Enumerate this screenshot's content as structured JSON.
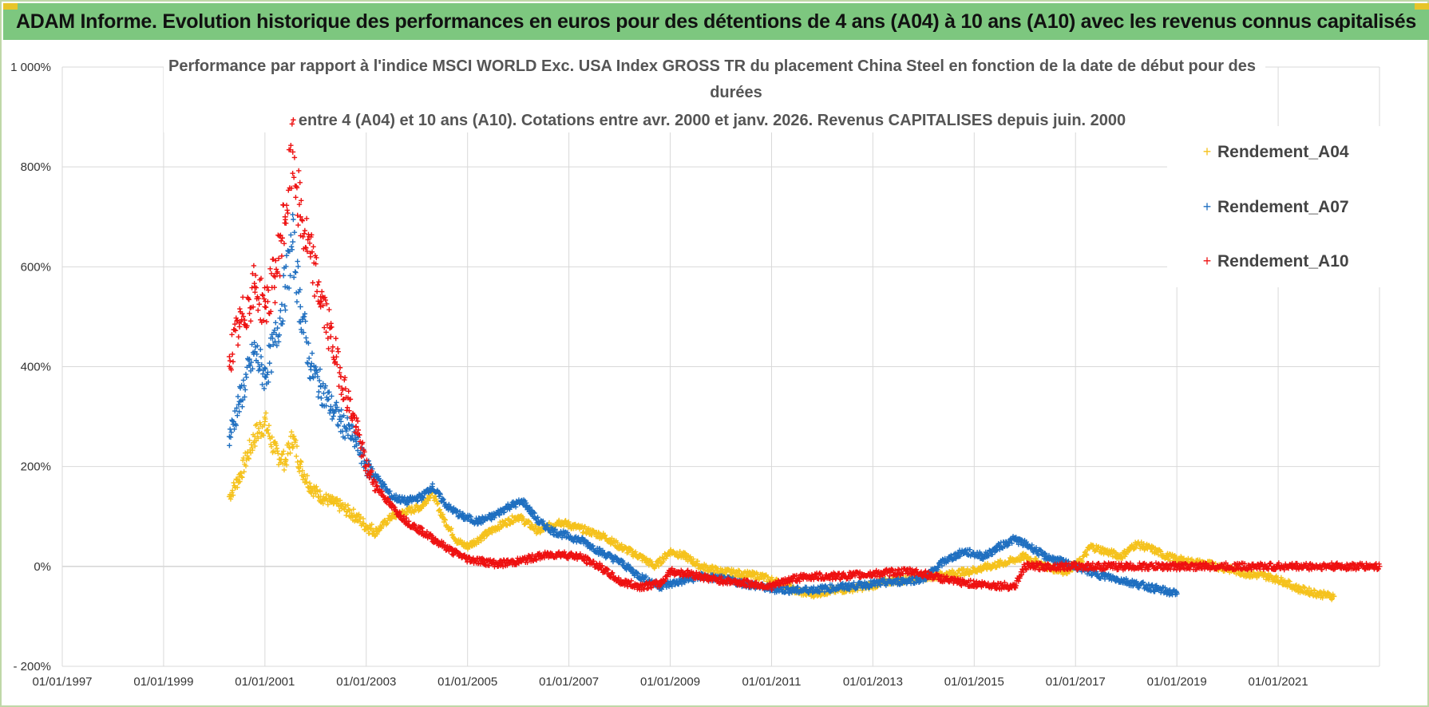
{
  "header": {
    "title": "ADAM Informe. Evolution historique des performances en euros pour des détentions de 4 ans (A04) à 10 ans (A10) avec les revenus connus capitalisés"
  },
  "colors": {
    "banner": "#7dc77f",
    "A04": "#f5c21c",
    "A07": "#1f6fc0",
    "A10": "#ee1111",
    "grid": "#d9d9d9"
  },
  "chart_data": {
    "type": "scatter",
    "title_lines": [
      "Performance par rapport à l'indice MSCI WORLD Exc. USA Index GROSS TR  du placement China Steel  en fonction de la date de début pour des",
      "durées",
      "entre 4 (A04) et 10 ans (A10).  Cotations entre avr. 2000 et janv. 2026.  Revenus CAPITALISES  depuis juin. 2000"
    ],
    "x_unit": "year",
    "xlim": [
      1997.0,
      2023.0
    ],
    "ylim": [
      -200,
      1000
    ],
    "y_ticks": [
      -200,
      0,
      200,
      400,
      600,
      800,
      1000
    ],
    "y_tick_labels": [
      "- 200%",
      "0%",
      "200%",
      "400%",
      "600%",
      "800%",
      "1 000%"
    ],
    "x_ticks": [
      1997,
      1999,
      2001,
      2003,
      2005,
      2007,
      2009,
      2011,
      2013,
      2015,
      2017,
      2019,
      2021
    ],
    "x_tick_labels": [
      "01/01/1997",
      "01/01/1999",
      "01/01/2001",
      "01/01/2003",
      "01/01/2005",
      "01/01/2007",
      "01/01/2009",
      "01/01/2011",
      "01/01/2013",
      "01/01/2015",
      "01/01/2017",
      "01/01/2019",
      "01/01/2021"
    ],
    "legend_position": "top-right",
    "series": [
      {
        "name": "Rendement_A04",
        "color": "#f5c21c",
        "x": [
          2000.3,
          2000.5,
          2000.8,
          2001.0,
          2001.2,
          2001.4,
          2001.55,
          2001.7,
          2001.9,
          2002.1,
          2002.3,
          2002.5,
          2002.8,
          2003.0,
          2003.2,
          2003.5,
          2003.8,
          2004.1,
          2004.3,
          2004.5,
          2004.8,
          2005.0,
          2005.3,
          2005.6,
          2006.0,
          2006.4,
          2006.8,
          2007.1,
          2007.4,
          2007.7,
          2008.0,
          2008.4,
          2008.7,
          2009.0,
          2009.3,
          2009.6,
          2010.0,
          2010.4,
          2010.8,
          2011.2,
          2011.5,
          2011.8,
          2012.1,
          2012.5,
          2012.9,
          2013.3,
          2013.7,
          2014.1,
          2014.5,
          2014.9,
          2015.3,
          2015.7,
          2016.0,
          2016.4,
          2016.8,
          2017.1,
          2017.3,
          2017.6,
          2017.9,
          2018.2,
          2018.5,
          2018.8,
          2019.2,
          2019.6,
          2020.0,
          2020.4,
          2020.8,
          2021.1,
          2021.4,
          2021.8,
          2022.1
        ],
        "y": [
          140,
          180,
          260,
          290,
          230,
          210,
          260,
          200,
          160,
          140,
          130,
          120,
          100,
          80,
          70,
          100,
          110,
          120,
          150,
          100,
          50,
          40,
          60,
          80,
          100,
          70,
          90,
          80,
          70,
          60,
          40,
          20,
          0,
          30,
          20,
          0,
          -10,
          -15,
          -20,
          -35,
          -50,
          -55,
          -50,
          -45,
          -40,
          -30,
          -25,
          -20,
          -15,
          -10,
          0,
          10,
          20,
          0,
          -10,
          10,
          40,
          30,
          20,
          45,
          35,
          20,
          10,
          5,
          -5,
          -15,
          -20,
          -30,
          -45,
          -55,
          -60
        ]
      },
      {
        "name": "Rendement_A07",
        "color": "#1f6fc0",
        "x": [
          2000.3,
          2000.5,
          2000.8,
          2001.0,
          2001.2,
          2001.4,
          2001.55,
          2001.7,
          2001.9,
          2002.1,
          2002.3,
          2002.5,
          2002.8,
          2003.0,
          2003.2,
          2003.5,
          2003.8,
          2004.1,
          2004.3,
          2004.6,
          2004.9,
          2005.2,
          2005.5,
          2005.8,
          2006.1,
          2006.4,
          2006.7,
          2007.0,
          2007.3,
          2007.6,
          2008.0,
          2008.4,
          2008.8,
          2009.2,
          2009.6,
          2010.0,
          2010.5,
          2011.0,
          2011.5,
          2012.0,
          2012.5,
          2013.0,
          2013.5,
          2014.0,
          2014.4,
          2014.8,
          2015.2,
          2015.5,
          2015.8,
          2016.1,
          2016.4,
          2016.7,
          2017.0,
          2017.4,
          2017.8,
          2018.2,
          2018.6,
          2019.0
        ],
        "y": [
          260,
          330,
          430,
          380,
          450,
          560,
          650,
          520,
          400,
          360,
          320,
          290,
          250,
          200,
          180,
          140,
          130,
          140,
          160,
          120,
          100,
          90,
          100,
          120,
          130,
          90,
          70,
          60,
          50,
          30,
          10,
          -20,
          -40,
          -30,
          -20,
          -25,
          -35,
          -45,
          -48,
          -45,
          -40,
          -35,
          -30,
          -25,
          10,
          30,
          20,
          40,
          55,
          40,
          20,
          10,
          0,
          -15,
          -25,
          -35,
          -45,
          -55
        ]
      },
      {
        "name": "Rendement_A10",
        "color": "#ee1111",
        "x": [
          2000.3,
          2000.5,
          2000.8,
          2001.0,
          2001.2,
          2001.4,
          2001.55,
          2001.7,
          2001.9,
          2002.1,
          2002.3,
          2002.5,
          2002.8,
          2003.0,
          2003.2,
          2003.5,
          2003.8,
          2004.1,
          2004.4,
          2004.7,
          2005.0,
          2005.3,
          2005.6,
          2006.0,
          2006.4,
          2006.8,
          2007.2,
          2007.6,
          2008.0,
          2008.4,
          2008.8,
          2009.0,
          2009.4,
          2009.8,
          2010.2,
          2010.6,
          2011.0,
          2011.4,
          2011.8,
          2012.2,
          2012.6,
          2013.0,
          2013.4,
          2013.8,
          2014.2,
          2014.6,
          2015.0,
          2015.4,
          2015.8,
          2016.0,
          2017.0,
          2018.0,
          2019.0,
          2020.0,
          2021.0,
          2022.0,
          2023.0
        ],
        "y": [
          420,
          480,
          560,
          520,
          580,
          700,
          830,
          700,
          620,
          540,
          460,
          380,
          280,
          200,
          160,
          120,
          90,
          70,
          50,
          30,
          15,
          10,
          5,
          10,
          20,
          25,
          20,
          0,
          -30,
          -40,
          -35,
          -10,
          -15,
          -25,
          -30,
          -35,
          -40,
          -25,
          -20,
          -20,
          -18,
          -15,
          -12,
          -10,
          -20,
          -30,
          -35,
          -38,
          -40,
          0,
          0,
          0,
          0,
          0,
          0,
          0,
          0
        ]
      }
    ]
  }
}
